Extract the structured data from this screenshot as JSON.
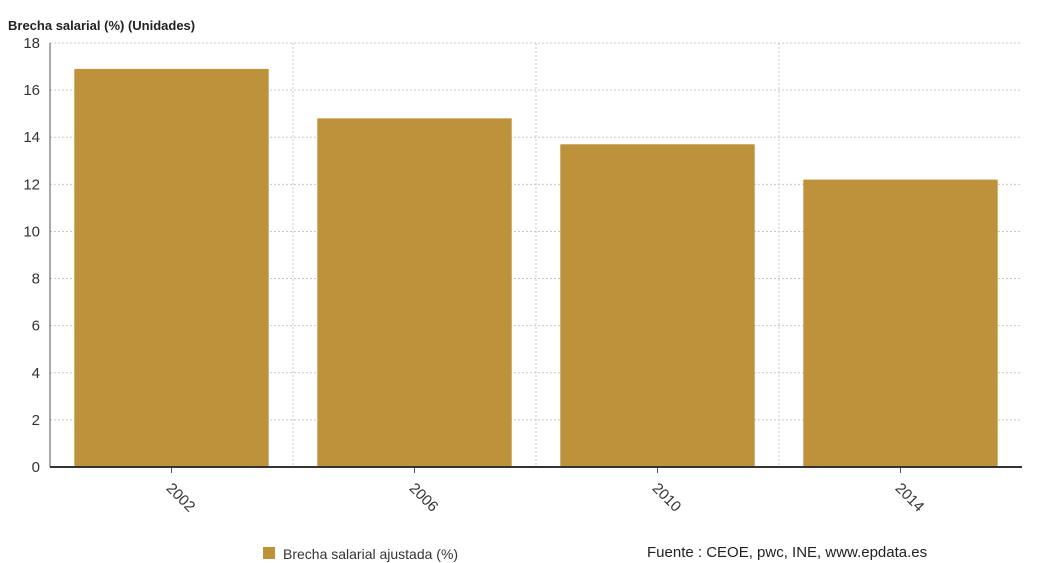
{
  "chart_data": {
    "type": "bar",
    "title": "",
    "ylabel": "Brecha salarial (%) (Unidades)",
    "xlabel": "",
    "categories": [
      "2002",
      "2006",
      "2010",
      "2014"
    ],
    "series": [
      {
        "name": "Brecha salarial ajustada (%)",
        "values": [
          16.9,
          14.8,
          13.7,
          12.2
        ],
        "color": "#be913b"
      }
    ],
    "ylim": [
      0,
      18
    ],
    "yticks": [
      0,
      2,
      4,
      6,
      8,
      10,
      12,
      14,
      16,
      18
    ],
    "grid": true,
    "legend_position": "bottom-left"
  },
  "source": "Fuente : CEOE, pwc, INE, www.epdata.es"
}
